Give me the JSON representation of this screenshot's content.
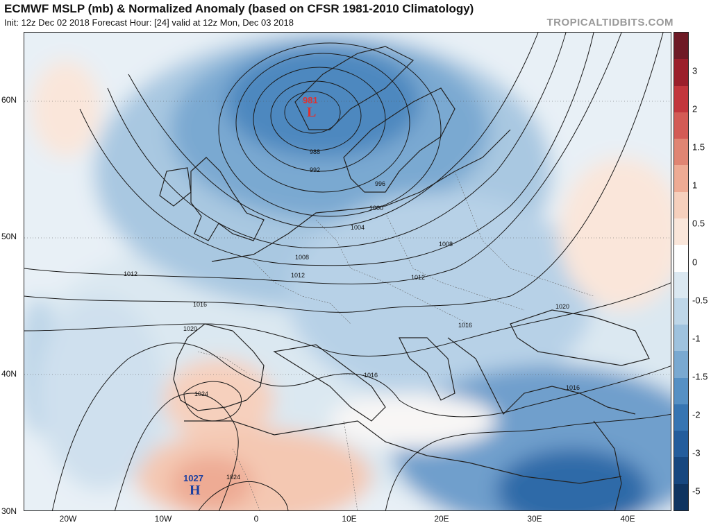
{
  "header": {
    "title": "ECMWF MSLP (mb) & Normalized Anomaly (based on CFSR 1981-2010 Climatology)",
    "subtitle": "Init: 12z Dec 02 2018   Forecast Hour: [24]   valid at 12z Mon, Dec 03 2018",
    "credit": "TROPICALTIDBITS.COM"
  },
  "axes": {
    "lat_labels": [
      "60N",
      "50N",
      "40N",
      "30N"
    ],
    "lon_labels": [
      "20W",
      "10W",
      "0",
      "10E",
      "20E",
      "30E",
      "40E"
    ]
  },
  "colorbar": {
    "ticks": [
      "3",
      "2",
      "1.5",
      "1",
      "0.5",
      "0",
      "-0.5",
      "-1",
      "-1.5",
      "-2",
      "-3",
      "-5"
    ],
    "colors": [
      "#6e1a25",
      "#9b1f2b",
      "#c2363c",
      "#d35b55",
      "#e08573",
      "#eeab94",
      "#f6d0bd",
      "#fae6da",
      "#ffffff",
      "#dbe8f1",
      "#bed6e8",
      "#9fc2de",
      "#7aa9d1",
      "#5690c4",
      "#3775b2",
      "#245d9c",
      "#17477f",
      "#0f3460"
    ]
  },
  "map_labels": {
    "low_value": "981",
    "low_letter": "L",
    "high_value": "1027",
    "high_letter": "H",
    "isobar_labels": [
      "988",
      "992",
      "996",
      "1000",
      "1004",
      "1008",
      "1008",
      "1012",
      "1012",
      "1012",
      "1016",
      "1016",
      "1016",
      "1016",
      "1020",
      "1020",
      "1024",
      "1024"
    ]
  }
}
